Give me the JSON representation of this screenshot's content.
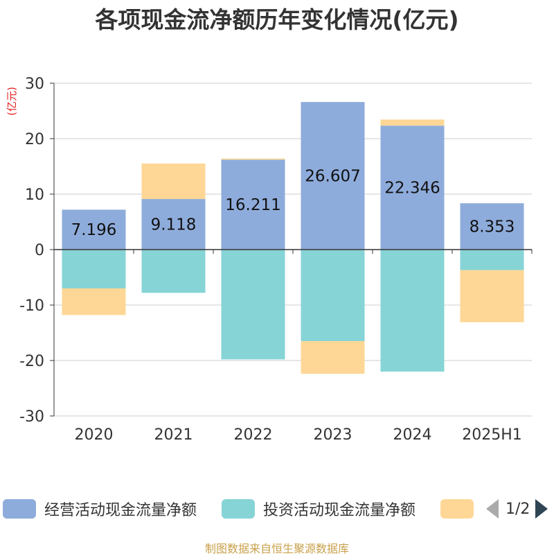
{
  "colors": {
    "operating": "#8eacdb",
    "investing": "#86d4d6",
    "financing": "#fed796",
    "axis": "#333333",
    "grid": "#cccccc",
    "unit": "#e01f1f"
  },
  "chart_data": {
    "type": "bar",
    "stacked": true,
    "title": "各项现金流净额历年变化情况(亿元)",
    "unit_label": "(亿元)",
    "categories": [
      "2020",
      "2021",
      "2022",
      "2023",
      "2024",
      "2025H1"
    ],
    "ylim": [
      -30,
      30
    ],
    "yticks": [
      30,
      20,
      10,
      0,
      -10,
      -20,
      -30
    ],
    "grid": true,
    "legend_position": "bottom",
    "series": [
      {
        "name": "经营活动现金流量净额",
        "values": [
          7.196,
          9.118,
          16.211,
          26.607,
          22.346,
          8.353
        ],
        "labels": [
          "7.196",
          "9.118",
          "16.211",
          "26.607",
          "22.346",
          "8.353"
        ]
      },
      {
        "name": "投资活动现金流量净额",
        "values": [
          -7.0,
          -7.8,
          -19.8,
          -16.5,
          -22.0,
          -3.7
        ]
      },
      {
        "name": "",
        "values": [
          -4.8,
          6.4,
          0.2,
          -5.9,
          1.1,
          -9.4
        ]
      }
    ]
  },
  "legend": {
    "items": [
      "经营活动现金流量净额",
      "投资活动现金流量净额",
      ""
    ],
    "page": "1/2"
  },
  "source": "制图数据来自恒生聚源数据库"
}
